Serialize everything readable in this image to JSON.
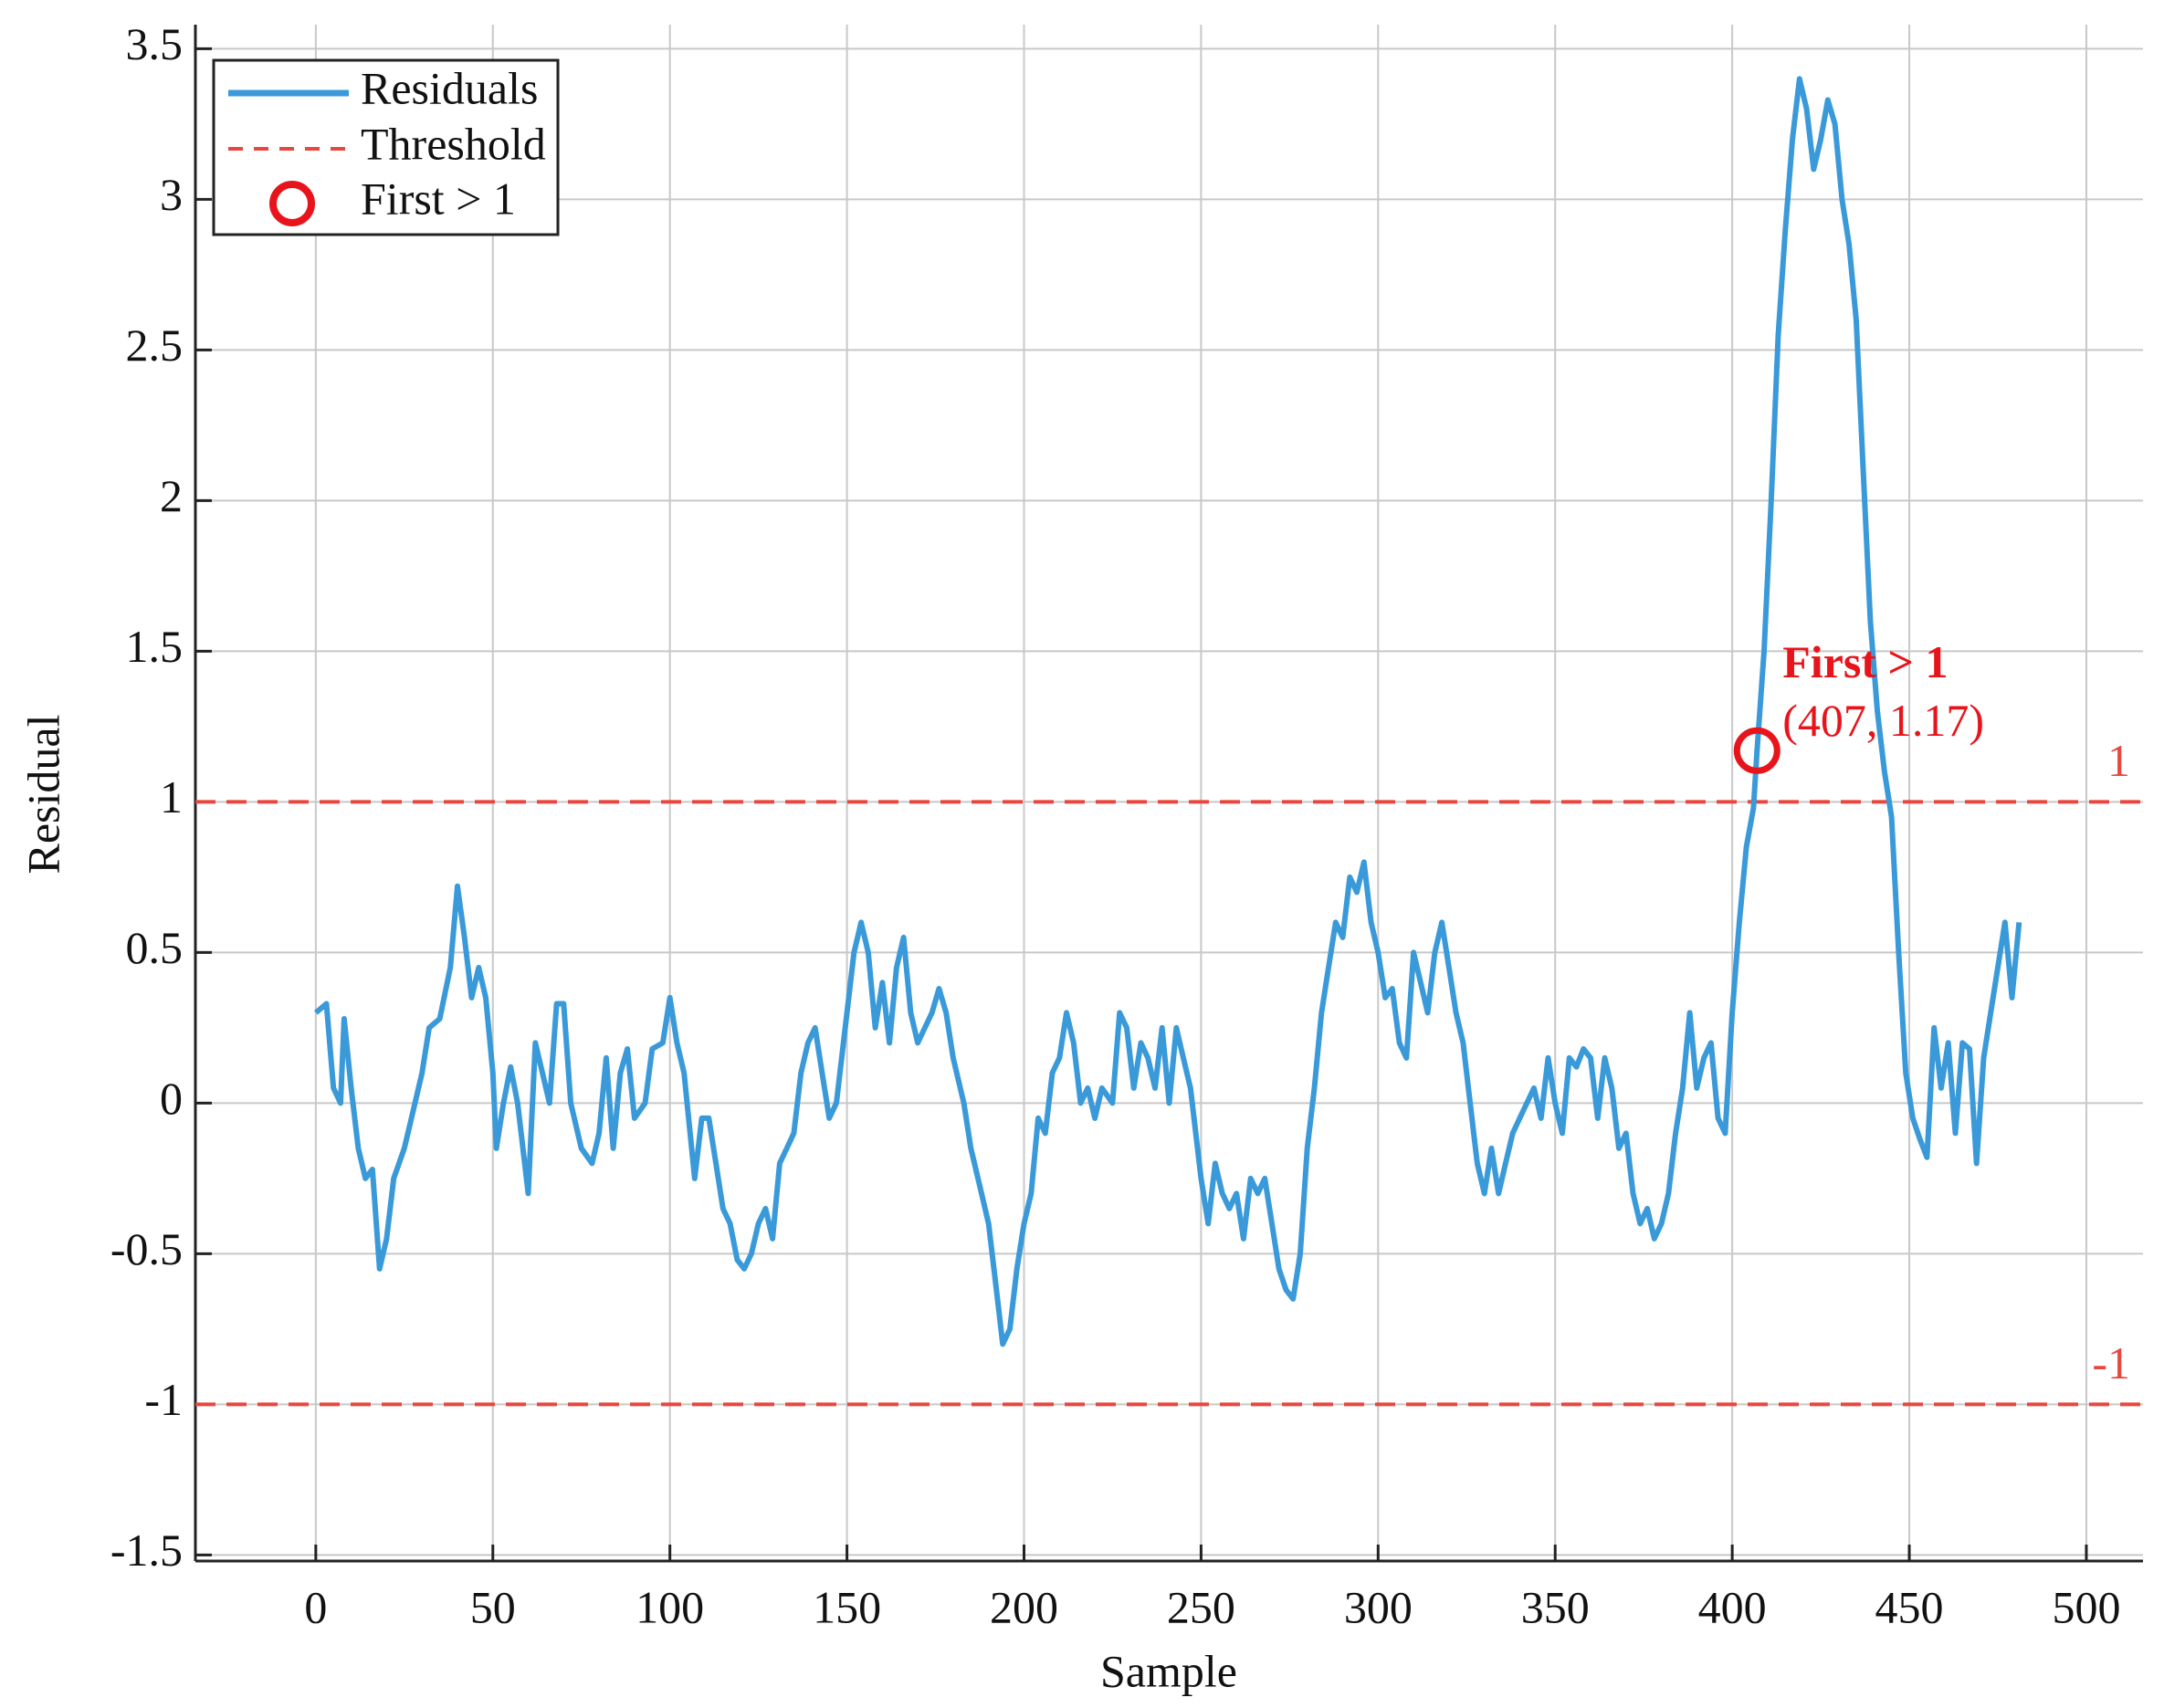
{
  "chart_data": {
    "type": "line",
    "xlabel": "Sample",
    "ylabel": "Residual",
    "x": [
      0,
      3,
      5,
      7,
      8,
      10,
      12,
      14,
      16,
      18,
      20,
      22,
      25,
      27,
      30,
      32,
      35,
      38,
      40,
      42,
      44,
      46,
      48,
      50,
      51,
      53,
      55,
      57,
      60,
      62,
      64,
      66,
      68,
      70,
      72,
      75,
      78,
      80,
      82,
      84,
      86,
      88,
      90,
      93,
      95,
      98,
      100,
      102,
      104,
      107,
      109,
      111,
      113,
      115,
      117,
      119,
      121,
      123,
      125,
      127,
      129,
      131,
      133,
      135,
      137,
      139,
      141,
      143,
      145,
      147,
      150,
      152,
      154,
      156,
      158,
      160,
      162,
      164,
      166,
      168,
      170,
      172,
      174,
      176,
      178,
      180,
      183,
      185,
      188,
      190,
      192,
      194,
      196,
      198,
      200,
      202,
      204,
      206,
      208,
      210,
      212,
      214,
      216,
      218,
      220,
      222,
      225,
      227,
      229,
      231,
      233,
      235,
      237,
      239,
      241,
      243,
      245,
      247,
      250,
      252,
      254,
      256,
      258,
      260,
      262,
      264,
      266,
      268,
      270,
      272,
      274,
      276,
      278,
      280,
      282,
      284,
      286,
      288,
      290,
      292,
      294,
      296,
      298,
      300,
      302,
      304,
      306,
      308,
      310,
      312,
      314,
      316,
      318,
      320,
      322,
      324,
      326,
      328,
      330,
      332,
      334,
      336,
      338,
      340,
      342,
      344,
      346,
      348,
      350,
      352,
      354,
      356,
      358,
      360,
      362,
      364,
      366,
      368,
      370,
      372,
      374,
      376,
      378,
      380,
      382,
      384,
      386,
      388,
      390,
      392,
      394,
      396,
      398,
      400,
      402,
      404,
      406,
      407,
      409,
      411,
      413,
      415,
      417,
      419,
      421,
      423,
      425,
      427,
      429,
      431,
      433,
      435,
      437,
      439,
      441,
      443,
      445,
      447,
      449,
      451,
      453,
      455,
      457,
      459,
      461,
      463,
      465,
      467,
      469,
      471,
      473,
      475,
      477,
      479,
      481
    ],
    "series": [
      {
        "name": "Residuals",
        "color": "#3a9ad9",
        "values": [
          0.3,
          0.33,
          0.05,
          0.0,
          0.28,
          0.05,
          -0.15,
          -0.25,
          -0.22,
          -0.55,
          -0.45,
          -0.25,
          -0.15,
          -0.05,
          0.1,
          0.25,
          0.28,
          0.45,
          0.72,
          0.55,
          0.35,
          0.45,
          0.35,
          0.1,
          -0.15,
          0.0,
          0.12,
          0.0,
          -0.3,
          0.2,
          0.1,
          0.0,
          0.33,
          0.33,
          0.0,
          -0.15,
          -0.2,
          -0.1,
          0.15,
          -0.15,
          0.1,
          0.18,
          -0.05,
          0.0,
          0.18,
          0.2,
          0.35,
          0.2,
          0.1,
          -0.25,
          -0.05,
          -0.05,
          -0.2,
          -0.35,
          -0.4,
          -0.52,
          -0.55,
          -0.5,
          -0.4,
          -0.35,
          -0.45,
          -0.2,
          -0.15,
          -0.1,
          0.1,
          0.2,
          0.25,
          0.1,
          -0.05,
          0.0,
          0.3,
          0.5,
          0.6,
          0.5,
          0.25,
          0.4,
          0.2,
          0.45,
          0.55,
          0.3,
          0.2,
          0.25,
          0.3,
          0.38,
          0.3,
          0.15,
          0.0,
          -0.15,
          -0.3,
          -0.4,
          -0.6,
          -0.8,
          -0.75,
          -0.55,
          -0.4,
          -0.3,
          -0.05,
          -0.1,
          0.1,
          0.15,
          0.3,
          0.2,
          0.0,
          0.05,
          -0.05,
          0.05,
          0.0,
          0.3,
          0.25,
          0.05,
          0.2,
          0.15,
          0.05,
          0.25,
          0.0,
          0.25,
          0.15,
          0.05,
          -0.25,
          -0.4,
          -0.2,
          -0.3,
          -0.35,
          -0.3,
          -0.45,
          -0.25,
          -0.3,
          -0.25,
          -0.4,
          -0.55,
          -0.62,
          -0.65,
          -0.5,
          -0.15,
          0.05,
          0.3,
          0.45,
          0.6,
          0.55,
          0.75,
          0.7,
          0.8,
          0.6,
          0.5,
          0.35,
          0.38,
          0.2,
          0.15,
          0.5,
          0.4,
          0.3,
          0.5,
          0.6,
          0.45,
          0.3,
          0.2,
          0.0,
          -0.2,
          -0.3,
          -0.15,
          -0.3,
          -0.2,
          -0.1,
          -0.05,
          0.0,
          0.05,
          -0.05,
          0.15,
          0.0,
          -0.1,
          0.15,
          0.12,
          0.18,
          0.15,
          -0.05,
          0.15,
          0.05,
          -0.15,
          -0.1,
          -0.3,
          -0.4,
          -0.35,
          -0.45,
          -0.4,
          -0.3,
          -0.1,
          0.05,
          0.3,
          0.05,
          0.15,
          0.2,
          -0.05,
          -0.1,
          0.3,
          0.6,
          0.85,
          0.98,
          1.17,
          1.5,
          2.0,
          2.55,
          2.9,
          3.2,
          3.4,
          3.3,
          3.1,
          3.2,
          3.33,
          3.25,
          3.0,
          2.85,
          2.6,
          2.1,
          1.6,
          1.3,
          1.1,
          0.95,
          0.5,
          0.1,
          -0.05,
          -0.12,
          -0.18,
          0.25,
          0.05,
          0.2,
          -0.1,
          0.2,
          0.18,
          -0.2,
          0.15,
          0.3,
          0.45,
          0.6,
          0.35,
          0.6
        ]
      }
    ],
    "threshold": {
      "name": "Threshold",
      "color": "#e8473f",
      "values": [
        1,
        -1
      ]
    },
    "marker": {
      "name": "First > 1",
      "color": "#e8141c",
      "x": 407,
      "y": 1.17,
      "annotation": "(407, 1.17)"
    },
    "xlim": [
      -34,
      516
    ],
    "ylim": [
      -1.52,
      3.58
    ],
    "xticks": [
      0,
      50,
      100,
      150,
      200,
      250,
      300,
      350,
      400,
      450,
      500
    ],
    "yticks": [
      -1.5,
      -1,
      -0.5,
      0,
      0.5,
      1,
      1.5,
      2,
      2.5,
      3,
      3.5
    ],
    "grid": true,
    "legend": "upper left"
  }
}
